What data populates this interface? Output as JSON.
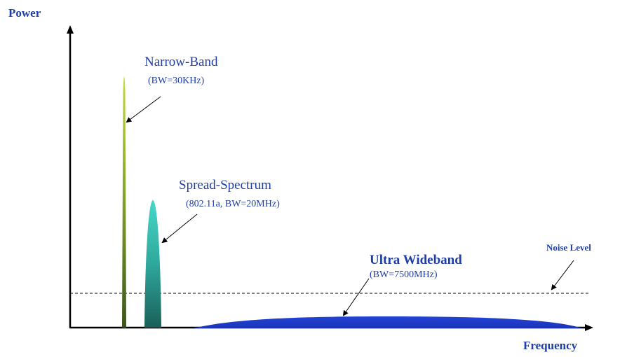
{
  "axes": {
    "y_label": "Power",
    "x_label": "Frequency"
  },
  "signals": {
    "narrow_band": {
      "title": "Narrow-Band",
      "detail": "(BW=30KHz)"
    },
    "spread_spectrum": {
      "title": "Spread-Spectrum",
      "detail": "(802.11a, BW=20MHz)"
    },
    "ultra_wideband": {
      "title": "Ultra Wideband",
      "detail": "(BW=7500MHz)"
    }
  },
  "noise": {
    "label": "Noise Level"
  },
  "colors": {
    "text": "#1f3ea8",
    "narrow_band_top": "#b5d334",
    "narrow_band_bottom": "#3f5a1c",
    "spread_top": "#3fd2c4",
    "spread_bottom": "#1b6a63",
    "uwb": "#1f3fd0",
    "axis": "#000000"
  }
}
